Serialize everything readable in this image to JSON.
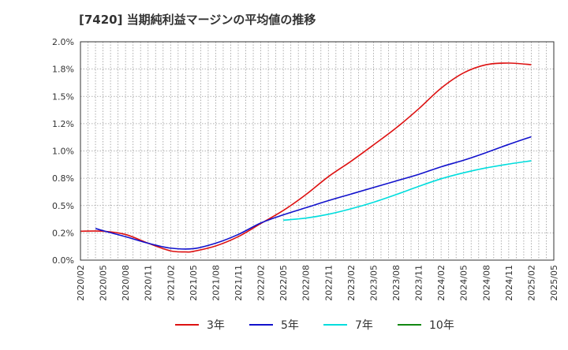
{
  "chart_data": {
    "type": "line",
    "title": "[7420]  当期純利益マージンの平均値の推移",
    "xlabel": "",
    "ylabel": "",
    "x_ticks": [
      "2020/02",
      "2020/05",
      "2020/08",
      "2020/11",
      "2021/02",
      "2021/05",
      "2021/08",
      "2021/11",
      "2022/02",
      "2022/05",
      "2022/08",
      "2022/11",
      "2023/02",
      "2023/05",
      "2023/08",
      "2023/11",
      "2024/02",
      "2024/05",
      "2024/08",
      "2024/11",
      "2025/02",
      "2025/05"
    ],
    "y_ticks": [
      "0.0%",
      "0.2%",
      "0.5%",
      "0.8%",
      "1.0%",
      "1.2%",
      "1.5%",
      "1.8%",
      "2.0%"
    ],
    "ylim": [
      0,
      2.0
    ],
    "grid": true,
    "legend_position": "bottom",
    "series": [
      {
        "name": "3年",
        "color": "#dd1111",
        "points": [
          [
            "2020/02",
            0.265
          ],
          [
            "2020/05",
            0.265
          ],
          [
            "2020/08",
            0.235
          ],
          [
            "2020/11",
            0.155
          ],
          [
            "2021/02",
            0.085
          ],
          [
            "2021/04",
            0.075
          ],
          [
            "2021/05",
            0.08
          ],
          [
            "2021/08",
            0.13
          ],
          [
            "2021/11",
            0.215
          ],
          [
            "2022/02",
            0.335
          ],
          [
            "2022/05",
            0.455
          ],
          [
            "2022/08",
            0.6
          ],
          [
            "2022/11",
            0.765
          ],
          [
            "2023/02",
            0.905
          ],
          [
            "2023/05",
            1.055
          ],
          [
            "2023/08",
            1.21
          ],
          [
            "2023/11",
            1.385
          ],
          [
            "2024/02",
            1.575
          ],
          [
            "2024/05",
            1.715
          ],
          [
            "2024/08",
            1.79
          ],
          [
            "2024/11",
            1.805
          ],
          [
            "2025/02",
            1.79
          ]
        ]
      },
      {
        "name": "5年",
        "color": "#1111cc",
        "points": [
          [
            "2020/04",
            0.29
          ],
          [
            "2020/05",
            0.27
          ],
          [
            "2020/08",
            0.215
          ],
          [
            "2020/11",
            0.155
          ],
          [
            "2021/02",
            0.11
          ],
          [
            "2021/05",
            0.105
          ],
          [
            "2021/08",
            0.155
          ],
          [
            "2021/11",
            0.235
          ],
          [
            "2022/02",
            0.34
          ],
          [
            "2022/05",
            0.415
          ],
          [
            "2022/08",
            0.48
          ],
          [
            "2022/11",
            0.545
          ],
          [
            "2023/02",
            0.605
          ],
          [
            "2023/05",
            0.665
          ],
          [
            "2023/08",
            0.725
          ],
          [
            "2023/11",
            0.785
          ],
          [
            "2024/02",
            0.855
          ],
          [
            "2024/05",
            0.915
          ],
          [
            "2024/08",
            0.985
          ],
          [
            "2024/11",
            1.06
          ],
          [
            "2025/02",
            1.13
          ]
        ]
      },
      {
        "name": "7年",
        "color": "#00dddd",
        "points": [
          [
            "2022/05",
            0.365
          ],
          [
            "2022/08",
            0.385
          ],
          [
            "2022/11",
            0.42
          ],
          [
            "2023/02",
            0.47
          ],
          [
            "2023/05",
            0.53
          ],
          [
            "2023/08",
            0.6
          ],
          [
            "2023/11",
            0.675
          ],
          [
            "2024/02",
            0.745
          ],
          [
            "2024/05",
            0.8
          ],
          [
            "2024/08",
            0.845
          ],
          [
            "2024/11",
            0.88
          ],
          [
            "2025/02",
            0.91
          ]
        ]
      },
      {
        "name": "10年",
        "color": "#118811",
        "points": []
      }
    ]
  }
}
